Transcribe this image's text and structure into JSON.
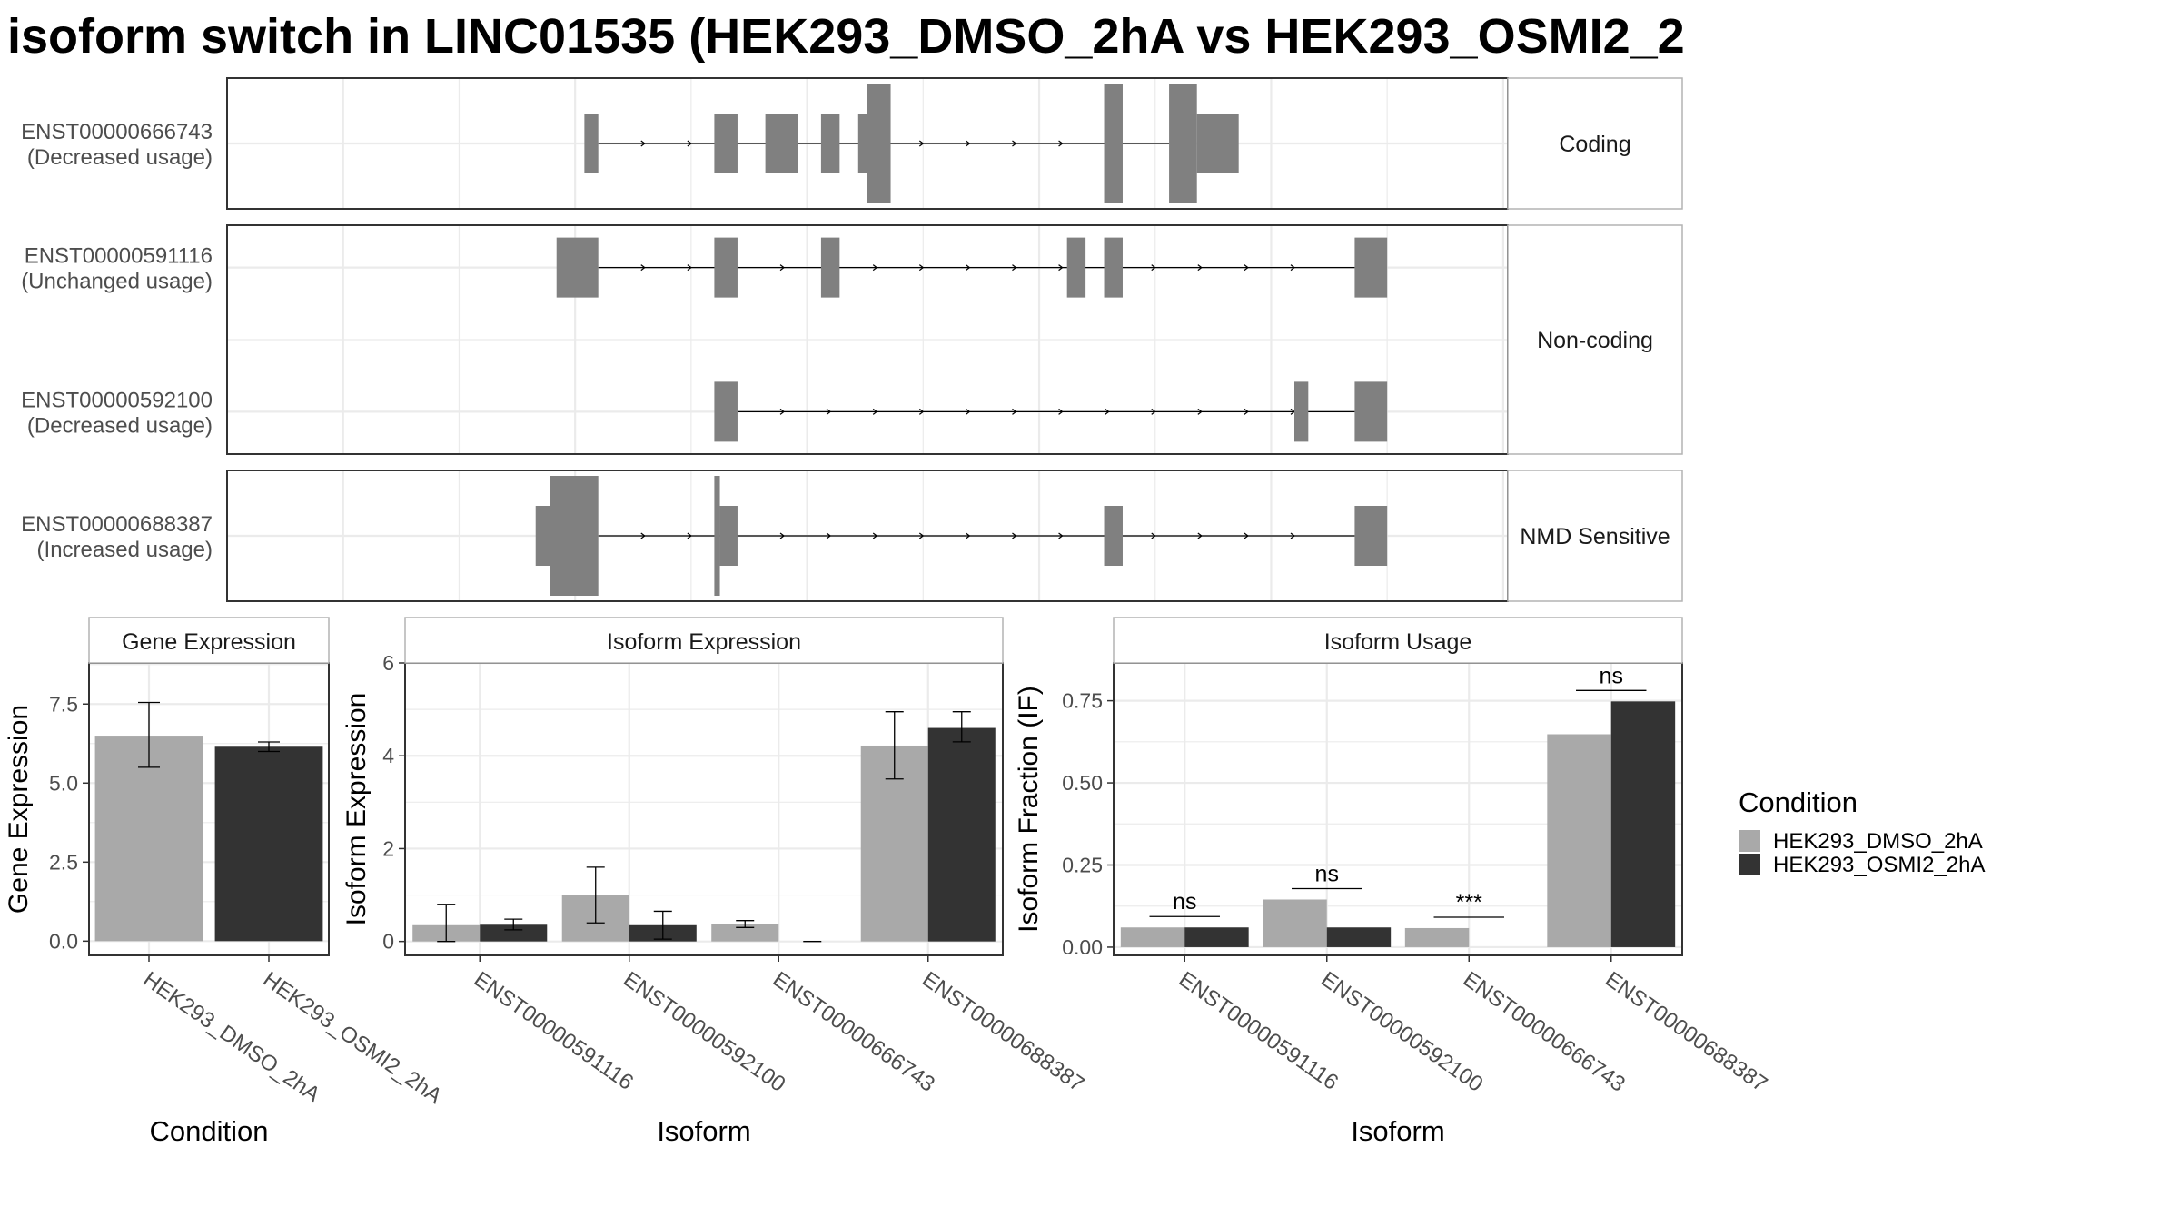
{
  "title": "isoform switch in LINC01535 (HEK293_DMSO_2hA vs HEK293_OSMI2_2",
  "colors": {
    "exon": "#808080",
    "intron": "#000000",
    "cond1": "#a9a9a9",
    "cond2": "#333333",
    "grid": "#ebebeb",
    "strip_bg": "#ffffff",
    "panel_border": "#333333"
  },
  "structure": {
    "groups": [
      {
        "label": "Coding",
        "tracks": [
          {
            "id": "ENST00000666743",
            "usage": "(Decreased usage)",
            "exons": [
              [
                7.7,
                8.0,
                "thin"
              ],
              [
                10.5,
                11.0,
                "thin"
              ],
              [
                11.6,
                12.3,
                "thin"
              ],
              [
                12.8,
                13.2,
                "thin"
              ],
              [
                13.6,
                13.8,
                "thin"
              ],
              [
                13.8,
                14.3,
                "thick"
              ],
              [
                18.9,
                19.3,
                "thick"
              ],
              [
                20.3,
                20.9,
                "thick"
              ],
              [
                20.9,
                21.8,
                "thin"
              ]
            ],
            "intron_span": [
              8.0,
              20.3
            ]
          }
        ]
      },
      {
        "label": "Non-coding",
        "tracks": [
          {
            "id": "ENST00000591116",
            "usage": "(Unchanged usage)",
            "exons": [
              [
                7.1,
                8.0,
                "thin"
              ],
              [
                10.5,
                11.0,
                "thin"
              ],
              [
                12.8,
                13.2,
                "thin"
              ],
              [
                18.1,
                18.5,
                "thin"
              ],
              [
                18.9,
                19.3,
                "thin"
              ],
              [
                24.3,
                25.0,
                "thin"
              ]
            ],
            "intron_span": [
              8.0,
              24.3
            ]
          },
          {
            "id": "ENST00000592100",
            "usage": "(Decreased usage)",
            "exons": [
              [
                10.5,
                11.0,
                "thin"
              ],
              [
                23.0,
                23.3,
                "thin"
              ],
              [
                24.3,
                25.0,
                "thin"
              ]
            ],
            "intron_span": [
              11.0,
              24.3
            ]
          }
        ]
      },
      {
        "label": "NMD Sensitive",
        "tracks": [
          {
            "id": "ENST00000688387",
            "usage": "(Increased usage)",
            "exons": [
              [
                6.65,
                6.95,
                "thin"
              ],
              [
                6.95,
                8.0,
                "thick"
              ],
              [
                10.5,
                10.62,
                "thick"
              ],
              [
                10.62,
                11.0,
                "thin"
              ],
              [
                18.9,
                19.3,
                "thin"
              ],
              [
                24.3,
                25.0,
                "thin"
              ]
            ],
            "intron_span": [
              8.0,
              24.3
            ]
          }
        ]
      }
    ]
  },
  "chart_data": [
    {
      "type": "bar",
      "title": "Gene Expression",
      "xlabel": "Condition",
      "ylabel": "Gene Expression",
      "ylim": [
        -0.45,
        8.8
      ],
      "yticks": [
        0.0,
        2.5,
        5.0,
        7.5
      ],
      "ytick_labels": [
        "0.0",
        "2.5",
        "5.0",
        "7.5"
      ],
      "categories": [
        "HEK293_DMSO_2hA",
        "HEK293_OSMI2_2hA"
      ],
      "values": [
        6.5,
        6.15
      ],
      "errors": [
        [
          5.5,
          7.55
        ],
        [
          6.0,
          6.3
        ]
      ]
    },
    {
      "type": "bar",
      "title": "Isoform Expression",
      "xlabel": "Isoform",
      "ylabel": "Isoform Expression",
      "ylim": [
        -0.3,
        6.0
      ],
      "yticks": [
        0,
        2,
        4,
        6
      ],
      "ytick_labels": [
        "0",
        "2",
        "4",
        "6"
      ],
      "categories": [
        "ENST00000591116",
        "ENST00000592100",
        "ENST00000666743",
        "ENST00000688387"
      ],
      "series": [
        {
          "name": "HEK293_DMSO_2hA",
          "values": [
            0.35,
            1.0,
            0.38,
            4.22
          ],
          "errors": [
            [
              0.0,
              0.8
            ],
            [
              0.4,
              1.6
            ],
            [
              0.3,
              0.45
            ],
            [
              3.5,
              4.95
            ]
          ]
        },
        {
          "name": "HEK293_OSMI2_2hA",
          "values": [
            0.36,
            0.35,
            0.0,
            4.6
          ],
          "errors": [
            [
              0.25,
              0.48
            ],
            [
              0.05,
              0.65
            ],
            [
              0.0,
              0.0
            ],
            [
              4.3,
              4.95
            ]
          ]
        }
      ]
    },
    {
      "type": "bar",
      "title": "Isoform Usage",
      "xlabel": "Isoform",
      "ylabel": "Isoform Fraction (IF)",
      "ylim": [
        -0.025,
        0.865
      ],
      "yticks": [
        0.0,
        0.25,
        0.5,
        0.75
      ],
      "ytick_labels": [
        "0.00",
        "0.25",
        "0.50",
        "0.75"
      ],
      "categories": [
        "ENST00000591116",
        "ENST00000592100",
        "ENST00000666743",
        "ENST00000688387"
      ],
      "series": [
        {
          "name": "HEK293_DMSO_2hA",
          "values": [
            0.06,
            0.145,
            0.058,
            0.648
          ]
        },
        {
          "name": "HEK293_OSMI2_2hA",
          "values": [
            0.06,
            0.06,
            0.0,
            0.748
          ]
        }
      ],
      "significance": [
        "ns",
        "ns",
        "***",
        "ns"
      ]
    }
  ],
  "legend": {
    "title": "Condition",
    "entries": [
      "HEK293_DMSO_2hA",
      "HEK293_OSMI2_2hA"
    ]
  }
}
